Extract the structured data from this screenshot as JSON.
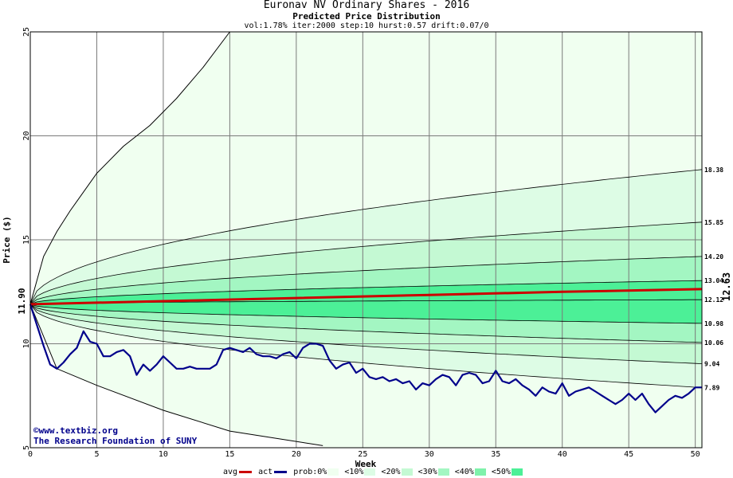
{
  "title": "Euronav NV Ordinary Shares - 2016",
  "subtitle": "Predicted Price Distribution",
  "params": "vol:1.78% iter:2000 step:10 hurst:0.57 drift:0.07/0",
  "credits": {
    "line1": "©www.textbiz.org",
    "line2": "The Research Foundation of SUNY"
  },
  "legend": {
    "avg_label": "avg",
    "act_label": "act",
    "prob_label": "prob:0%",
    "bands": [
      "<10%",
      "<20%",
      "<30%",
      "<40%",
      "<50%"
    ],
    "suffix": "<"
  },
  "colors": {
    "avg_line": "#cc0000",
    "act_line": "#00008b",
    "band_0": "#f0fff0",
    "band_10": "#ddfce5",
    "band_20": "#c4f9d3",
    "band_30": "#a3f6c2",
    "band_40": "#7ff2ab",
    "band_50": "#4cf097",
    "grid": "#7a7a7a"
  },
  "chart_data": {
    "type": "area",
    "title": "Euronav NV Ordinary Shares - 2016",
    "subtitle": "Predicted Price Distribution",
    "xlabel": "Week",
    "ylabel": "Price ($)",
    "xlim": [
      0,
      50.5
    ],
    "ylim": [
      5,
      25
    ],
    "xticks": [
      0,
      5,
      10,
      15,
      20,
      25,
      30,
      35,
      40,
      45,
      50
    ],
    "yticks": [
      5,
      10,
      15,
      20,
      25
    ],
    "grid": true,
    "start_price": 11.9,
    "start_price_label": "11.90",
    "avg_end": 12.63,
    "avg_end_label": "12.63",
    "right_labels": [
      "18.38",
      "15.85",
      "14.20",
      "13.04",
      "12.12",
      "10.98",
      "10.06",
      "9.04",
      "7.89"
    ],
    "envelope_upper": {
      "x": [
        0,
        1,
        2,
        3,
        5,
        7,
        9,
        11,
        13,
        15
      ],
      "y": [
        11.9,
        14.2,
        15.4,
        16.4,
        18.2,
        19.5,
        20.5,
        21.8,
        23.3,
        25.0
      ]
    },
    "envelope_lower": {
      "x": [
        0,
        2,
        5,
        10,
        15,
        22
      ],
      "y": [
        11.9,
        8.8,
        8.0,
        6.8,
        5.8,
        5.1
      ]
    },
    "series": [
      {
        "name": "18.38",
        "end": 18.38
      },
      {
        "name": "15.85",
        "end": 15.85
      },
      {
        "name": "14.20",
        "end": 14.2
      },
      {
        "name": "13.04",
        "end": 13.04
      },
      {
        "name": "12.12",
        "end": 12.12
      },
      {
        "name": "10.98",
        "end": 10.98
      },
      {
        "name": "10.06",
        "end": 10.06
      },
      {
        "name": "9.04",
        "end": 9.04
      },
      {
        "name": "7.89",
        "end": 7.89
      }
    ],
    "avg": {
      "x": [
        0,
        10,
        20,
        30,
        40,
        50.5
      ],
      "y": [
        11.9,
        12.05,
        12.2,
        12.35,
        12.5,
        12.63
      ]
    },
    "actual": {
      "x": [
        0,
        0.5,
        1,
        1.5,
        2,
        2.5,
        3,
        3.5,
        4,
        4.5,
        5,
        5.5,
        6,
        6.5,
        7,
        7.5,
        8,
        8.5,
        9,
        9.5,
        10,
        10.5,
        11,
        11.5,
        12,
        12.5,
        13,
        13.5,
        14,
        14.5,
        15,
        15.5,
        16,
        16.5,
        17,
        17.5,
        18,
        18.5,
        19,
        19.5,
        20,
        20.5,
        21,
        21.5,
        22,
        22.5,
        23,
        23.5,
        24,
        24.5,
        25,
        25.5,
        26,
        26.5,
        27,
        27.5,
        28,
        28.5,
        29,
        29.5,
        30,
        30.5,
        31,
        31.5,
        32,
        32.5,
        33,
        33.5,
        34,
        34.5,
        35,
        35.5,
        36,
        36.5,
        37,
        37.5,
        38,
        38.5,
        39,
        39.5,
        40,
        40.5,
        41,
        41.5,
        42,
        42.5,
        43,
        43.5,
        44,
        44.5,
        45,
        45.5,
        46,
        46.5,
        47,
        47.5,
        48,
        48.5,
        49,
        49.5,
        50,
        50.5
      ],
      "y": [
        11.9,
        10.9,
        9.9,
        9.0,
        8.8,
        9.1,
        9.5,
        9.8,
        10.6,
        10.1,
        10.0,
        9.4,
        9.4,
        9.6,
        9.7,
        9.4,
        8.5,
        9.0,
        8.7,
        9.0,
        9.4,
        9.1,
        8.8,
        8.8,
        8.9,
        8.8,
        8.8,
        8.8,
        9.0,
        9.7,
        9.8,
        9.7,
        9.6,
        9.8,
        9.5,
        9.4,
        9.4,
        9.3,
        9.5,
        9.6,
        9.3,
        9.8,
        10.0,
        10.0,
        9.9,
        9.2,
        8.8,
        9.0,
        9.1,
        8.6,
        8.8,
        8.4,
        8.3,
        8.4,
        8.2,
        8.3,
        8.1,
        8.2,
        7.8,
        8.1,
        8.0,
        8.3,
        8.5,
        8.4,
        8.0,
        8.5,
        8.6,
        8.5,
        8.1,
        8.2,
        8.7,
        8.2,
        8.1,
        8.3,
        8.0,
        7.8,
        7.5,
        7.9,
        7.7,
        7.6,
        8.1,
        7.5,
        7.7,
        7.8,
        7.9,
        7.7,
        7.5,
        7.3,
        7.1,
        7.3,
        7.6,
        7.3,
        7.6,
        7.1,
        6.7,
        7.0,
        7.3,
        7.5,
        7.4,
        7.6,
        7.9,
        7.9
      ]
    }
  }
}
